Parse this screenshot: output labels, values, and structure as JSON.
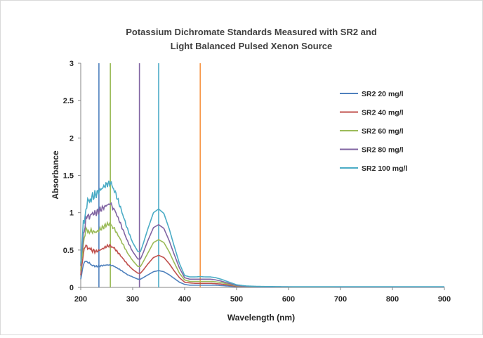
{
  "chart_data": {
    "type": "line",
    "title_line1": "Potassium Dichromate Standards Measured with SR2 and",
    "title_line2": "Light Balanced Pulsed Xenon Source",
    "xlabel": "Wavelength (nm)",
    "ylabel": "Absorbance",
    "xlim": [
      200,
      900
    ],
    "ylim": [
      0,
      3
    ],
    "x_ticks": [
      "200",
      "300",
      "400",
      "500",
      "600",
      "700",
      "800",
      "900"
    ],
    "y_ticks": [
      "0",
      "0.5",
      "1",
      "1.5",
      "2",
      "2.5",
      "3"
    ],
    "grid": false,
    "legend_position": "right",
    "vertical_markers": [
      {
        "x": 235,
        "color": "#4f81bd"
      },
      {
        "x": 257,
        "color": "#9bbb59"
      },
      {
        "x": 313,
        "color": "#8064a2"
      },
      {
        "x": 350,
        "color": "#4bacc6"
      },
      {
        "x": 430,
        "color": "#f79646"
      }
    ],
    "series": [
      {
        "name": "SR2 20 mg/l",
        "color": "#4f81bd",
        "x": [
          200,
          205,
          210,
          215,
          220,
          230,
          240,
          250,
          257,
          265,
          275,
          290,
          300,
          310,
          315,
          320,
          330,
          340,
          350,
          360,
          370,
          380,
          390,
          400,
          410,
          420,
          430,
          440,
          450,
          460,
          470,
          480,
          490,
          500,
          520,
          550,
          600,
          700,
          800,
          900
        ],
        "y": [
          0.12,
          0.3,
          0.36,
          0.33,
          0.3,
          0.28,
          0.29,
          0.3,
          0.3,
          0.28,
          0.24,
          0.17,
          0.14,
          0.11,
          0.11,
          0.13,
          0.17,
          0.21,
          0.225,
          0.21,
          0.17,
          0.12,
          0.07,
          0.04,
          0.03,
          0.03,
          0.03,
          0.03,
          0.03,
          0.03,
          0.025,
          0.02,
          0.015,
          0.01,
          0.008,
          0.005,
          0.004,
          0.003,
          0.003,
          0.003
        ]
      },
      {
        "name": "SR2 40 mg/l",
        "color": "#c0504d",
        "x": [
          200,
          205,
          210,
          215,
          220,
          230,
          240,
          250,
          257,
          265,
          275,
          290,
          300,
          310,
          315,
          320,
          330,
          340,
          350,
          360,
          370,
          380,
          390,
          400,
          410,
          420,
          430,
          440,
          450,
          460,
          470,
          480,
          490,
          500,
          520,
          550,
          600,
          700,
          800,
          900
        ],
        "y": [
          0.18,
          0.46,
          0.56,
          0.53,
          0.5,
          0.48,
          0.51,
          0.55,
          0.56,
          0.52,
          0.44,
          0.31,
          0.24,
          0.19,
          0.19,
          0.23,
          0.32,
          0.4,
          0.43,
          0.4,
          0.32,
          0.22,
          0.13,
          0.07,
          0.06,
          0.055,
          0.055,
          0.055,
          0.055,
          0.05,
          0.045,
          0.035,
          0.025,
          0.015,
          0.01,
          0.007,
          0.005,
          0.004,
          0.004,
          0.004
        ]
      },
      {
        "name": "SR2 60 mg/l",
        "color": "#9bbb59",
        "x": [
          200,
          205,
          210,
          215,
          220,
          230,
          240,
          250,
          257,
          265,
          275,
          290,
          300,
          310,
          315,
          320,
          330,
          340,
          350,
          360,
          370,
          380,
          390,
          400,
          410,
          420,
          430,
          440,
          450,
          460,
          470,
          480,
          490,
          500,
          520,
          550,
          600,
          700,
          800,
          900
        ],
        "y": [
          0.22,
          0.6,
          0.76,
          0.76,
          0.75,
          0.74,
          0.79,
          0.84,
          0.85,
          0.78,
          0.66,
          0.46,
          0.36,
          0.28,
          0.28,
          0.34,
          0.47,
          0.6,
          0.64,
          0.6,
          0.48,
          0.33,
          0.19,
          0.1,
          0.08,
          0.08,
          0.08,
          0.08,
          0.08,
          0.075,
          0.065,
          0.05,
          0.035,
          0.02,
          0.012,
          0.008,
          0.006,
          0.005,
          0.005,
          0.005
        ]
      },
      {
        "name": "SR2 80 mg/l",
        "color": "#8064a2",
        "x": [
          200,
          205,
          210,
          215,
          220,
          230,
          240,
          250,
          257,
          265,
          275,
          290,
          300,
          310,
          315,
          320,
          330,
          340,
          350,
          360,
          370,
          380,
          390,
          400,
          410,
          420,
          430,
          440,
          450,
          460,
          470,
          480,
          490,
          500,
          520,
          550,
          600,
          700,
          800,
          900
        ],
        "y": [
          0.25,
          0.72,
          0.9,
          0.96,
          0.98,
          1.0,
          1.05,
          1.1,
          1.12,
          1.04,
          0.88,
          0.62,
          0.48,
          0.38,
          0.38,
          0.46,
          0.64,
          0.8,
          0.84,
          0.79,
          0.63,
          0.44,
          0.26,
          0.13,
          0.11,
          0.11,
          0.11,
          0.11,
          0.11,
          0.1,
          0.085,
          0.065,
          0.045,
          0.025,
          0.014,
          0.009,
          0.007,
          0.006,
          0.006,
          0.006
        ]
      },
      {
        "name": "SR2 100 mg/l",
        "color": "#4bacc6",
        "x": [
          200,
          205,
          210,
          215,
          220,
          230,
          240,
          250,
          257,
          265,
          275,
          290,
          300,
          310,
          315,
          320,
          330,
          340,
          350,
          360,
          370,
          380,
          390,
          400,
          410,
          420,
          430,
          440,
          450,
          460,
          470,
          480,
          490,
          500,
          520,
          550,
          600,
          700,
          800,
          900
        ],
        "y": [
          0.28,
          0.85,
          1.05,
          1.15,
          1.2,
          1.25,
          1.32,
          1.38,
          1.4,
          1.3,
          1.1,
          0.78,
          0.6,
          0.48,
          0.48,
          0.58,
          0.8,
          1.0,
          1.05,
          0.99,
          0.79,
          0.55,
          0.32,
          0.16,
          0.14,
          0.14,
          0.145,
          0.14,
          0.14,
          0.13,
          0.11,
          0.085,
          0.06,
          0.035,
          0.018,
          0.012,
          0.009,
          0.008,
          0.008,
          0.008
        ]
      }
    ]
  }
}
